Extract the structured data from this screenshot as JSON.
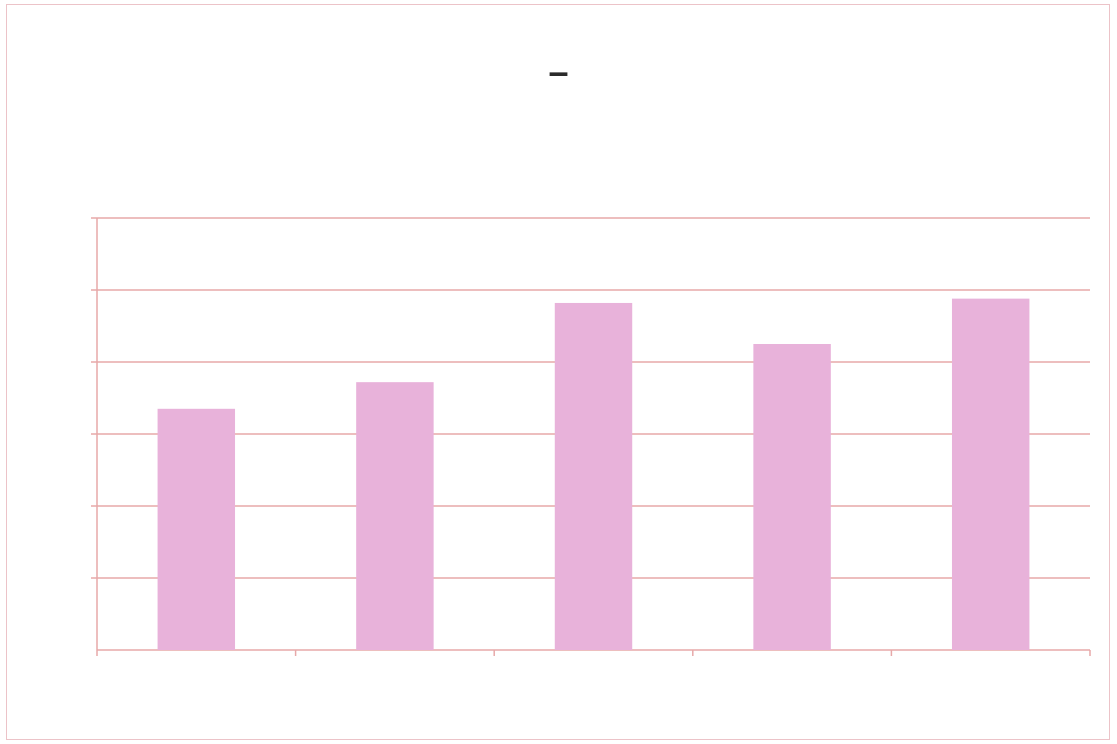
{
  "chart_data": {
    "type": "bar",
    "title": "–",
    "xlabel": "",
    "ylabel": "",
    "categories": [
      "",
      "",
      "",
      "",
      ""
    ],
    "values": [
      3.35,
      3.72,
      4.82,
      4.25,
      4.88
    ],
    "ylim": [
      0,
      6
    ],
    "grid": true,
    "legend": "none",
    "colors": {
      "bar": "#e8b2da",
      "grid": "#e7a9a9",
      "axis": "#e7a9a9",
      "frame": "#ecc3c8"
    }
  }
}
